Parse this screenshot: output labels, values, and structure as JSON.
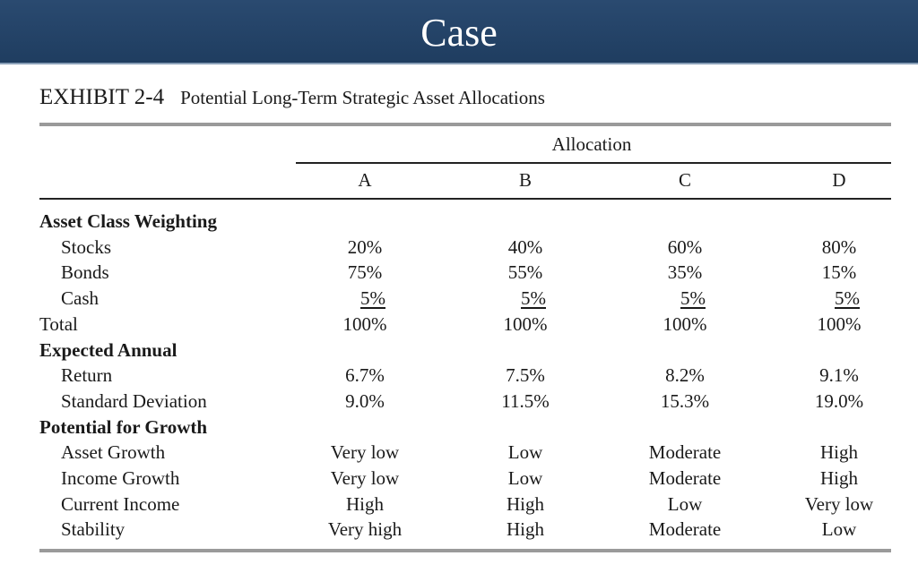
{
  "banner": {
    "title": "Case"
  },
  "exhibit": {
    "label": "EXHIBIT 2-4",
    "title": "Potential Long-Term Strategic Asset Allocations"
  },
  "table": {
    "group_header": "Allocation",
    "columns": [
      "A",
      "B",
      "C",
      "D"
    ],
    "rows": [
      {
        "label": "Asset Class Weighting",
        "kind": "section",
        "values": []
      },
      {
        "label": "Stocks",
        "kind": "item",
        "values": [
          "20%",
          "40%",
          "60%",
          "80%"
        ]
      },
      {
        "label": "Bonds",
        "kind": "item",
        "values": [
          "75%",
          "55%",
          "35%",
          "15%"
        ]
      },
      {
        "label": "Cash",
        "kind": "item",
        "values": [
          "5%",
          "5%",
          "5%",
          "5%"
        ],
        "underlined": true
      },
      {
        "label": "Total",
        "kind": "total",
        "values": [
          "100%",
          "100%",
          "100%",
          "100%"
        ]
      },
      {
        "label": "Expected Annual",
        "kind": "section",
        "values": []
      },
      {
        "label": "Return",
        "kind": "item",
        "values": [
          "6.7%",
          "7.5%",
          "8.2%",
          "9.1%"
        ]
      },
      {
        "label": "Standard Deviation",
        "kind": "item",
        "values": [
          "9.0%",
          "11.5%",
          "15.3%",
          "19.0%"
        ]
      },
      {
        "label": "Potential for Growth",
        "kind": "section",
        "values": []
      },
      {
        "label": "Asset Growth",
        "kind": "item",
        "values": [
          "Very low",
          "Low",
          "Moderate",
          "High"
        ]
      },
      {
        "label": "Income Growth",
        "kind": "item",
        "values": [
          "Very low",
          "Low",
          "Moderate",
          "High"
        ]
      },
      {
        "label": "Current Income",
        "kind": "item",
        "values": [
          "High",
          "High",
          "Low",
          "Very low"
        ]
      },
      {
        "label": "Stability",
        "kind": "item",
        "values": [
          "Very high",
          "High",
          "Moderate",
          "Low"
        ]
      }
    ]
  }
}
